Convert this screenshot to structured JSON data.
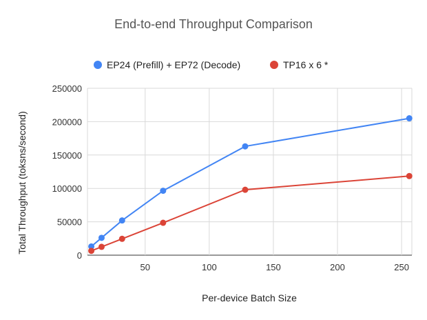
{
  "chart_data": {
    "type": "line",
    "title": "End-to-end Throughput Comparison",
    "xlabel": "Per-device Batch Size",
    "ylabel": "Total Throughput (toksns/second)",
    "xlim": [
      5,
      258
    ],
    "ylim": [
      0,
      250000
    ],
    "x_ticks": [
      50,
      100,
      150,
      200,
      250
    ],
    "y_ticks": [
      0,
      50000,
      100000,
      150000,
      200000,
      250000
    ],
    "grid": true,
    "legend_position": "top",
    "series": [
      {
        "name": "EP24 (Prefill) + EP72 (Decode)",
        "color": "#4285f4",
        "x": [
          8,
          16,
          32,
          64,
          128,
          256
        ],
        "values": [
          13000,
          26000,
          52000,
          96500,
          163000,
          205000
        ]
      },
      {
        "name": "TP16 x 6 *",
        "color": "#db4437",
        "x": [
          8,
          16,
          32,
          64,
          128,
          256
        ],
        "values": [
          6500,
          12500,
          24500,
          48500,
          98000,
          118500
        ]
      }
    ]
  }
}
